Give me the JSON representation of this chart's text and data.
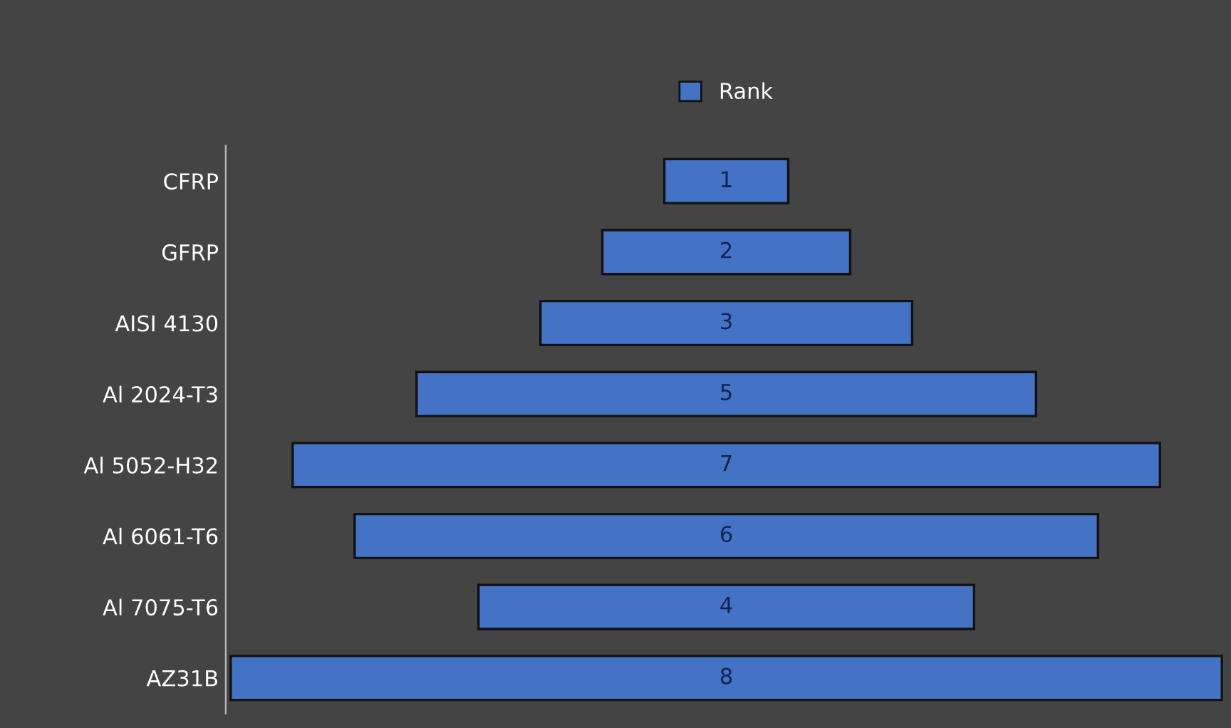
{
  "chart_data": {
    "type": "other",
    "categories": [
      "CFRP",
      "GFRP",
      "AISI 4130",
      "Al 2024-T3",
      "Al 5052-H32",
      "Al 6061-T6",
      "Al 7075-T6",
      "AZ31B"
    ],
    "series": [
      {
        "name": "Rank",
        "color": "#4472c4",
        "values": [
          1,
          2,
          3,
          5,
          7,
          6,
          4,
          8
        ]
      }
    ],
    "data_labels": true,
    "legend": "top"
  }
}
